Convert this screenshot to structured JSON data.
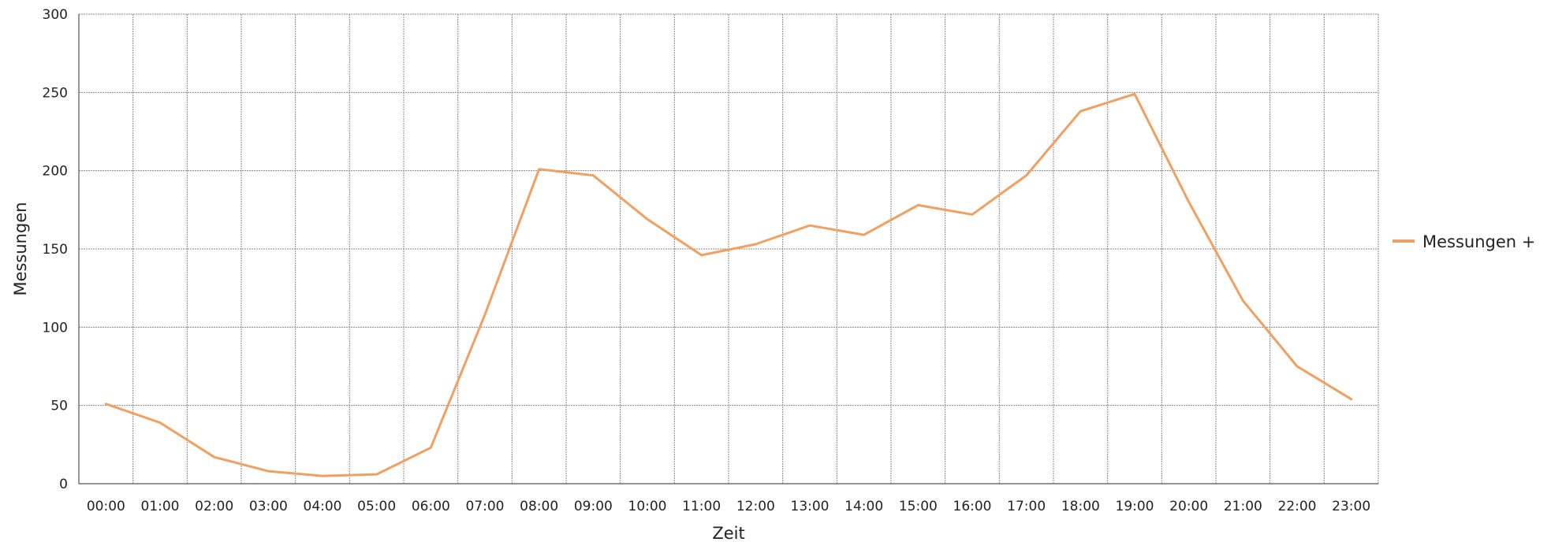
{
  "chart_data": {
    "type": "line",
    "xlabel": "Zeit",
    "ylabel": "Messungen",
    "categories": [
      "00:00",
      "01:00",
      "02:00",
      "03:00",
      "04:00",
      "05:00",
      "06:00",
      "07:00",
      "08:00",
      "09:00",
      "10:00",
      "11:00",
      "12:00",
      "13:00",
      "14:00",
      "15:00",
      "16:00",
      "17:00",
      "18:00",
      "19:00",
      "20:00",
      "21:00",
      "22:00",
      "23:00"
    ],
    "ylim": [
      0,
      300
    ],
    "yticks": [
      0,
      50,
      100,
      150,
      200,
      250,
      300
    ],
    "grid": true,
    "legend_position": "right",
    "series": [
      {
        "name": "Messungen +",
        "color": "#f0a060",
        "values": [
          51,
          39,
          17,
          8,
          5,
          6,
          23,
          108,
          201,
          197,
          169,
          146,
          153,
          165,
          159,
          178,
          172,
          197,
          238,
          249,
          180,
          117,
          75,
          54
        ]
      }
    ]
  }
}
